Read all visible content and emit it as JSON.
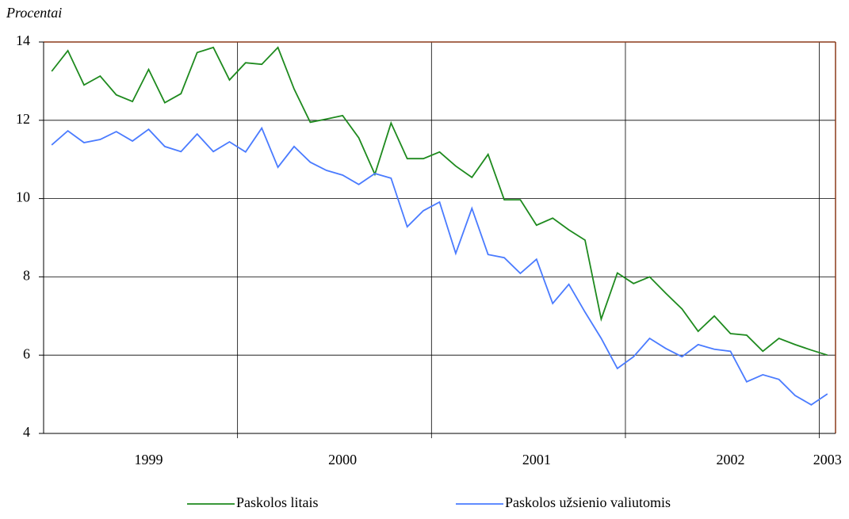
{
  "chart_data": {
    "type": "line",
    "y_axis_label": "Procentai",
    "categories": [
      null,
      null,
      null,
      null,
      null,
      null,
      "1999",
      null,
      null,
      null,
      null,
      null,
      null,
      null,
      null,
      null,
      null,
      null,
      "2000",
      null,
      null,
      null,
      null,
      null,
      null,
      null,
      null,
      null,
      null,
      null,
      "2001",
      null,
      null,
      null,
      null,
      null,
      null,
      null,
      null,
      null,
      null,
      null,
      "2002",
      null,
      null,
      null,
      null,
      null,
      "2003"
    ],
    "series": [
      {
        "name": "Paskolos litais",
        "color": "#1e8a1e",
        "values": [
          13.25,
          13.78,
          12.9,
          13.13,
          12.65,
          12.48,
          13.3,
          12.45,
          12.68,
          13.73,
          13.86,
          13.03,
          13.47,
          13.43,
          13.86,
          12.8,
          11.95,
          12.03,
          12.12,
          11.55,
          10.62,
          11.93,
          11.02,
          11.02,
          11.19,
          10.83,
          10.54,
          11.13,
          9.97,
          9.97,
          9.32,
          9.5,
          9.2,
          8.94,
          6.92,
          8.1,
          7.83,
          8.0,
          7.58,
          7.18,
          6.61,
          7.0,
          6.55,
          6.51,
          6.1,
          6.43,
          6.27,
          6.13,
          6.0
        ]
      },
      {
        "name": "Paskolos užsienio valiutomis",
        "color": "#4a7bff",
        "values": [
          11.37,
          11.73,
          11.43,
          11.51,
          11.71,
          11.47,
          11.77,
          11.33,
          11.2,
          11.65,
          11.2,
          11.45,
          11.19,
          11.8,
          10.8,
          11.33,
          10.93,
          10.72,
          10.6,
          10.36,
          10.64,
          10.52,
          9.28,
          9.69,
          9.91,
          8.6,
          9.75,
          8.57,
          8.49,
          8.09,
          8.45,
          7.32,
          7.81,
          7.1,
          6.43,
          5.66,
          5.96,
          6.43,
          6.17,
          5.96,
          6.27,
          6.15,
          6.1,
          5.32,
          5.5,
          5.38,
          4.97,
          4.73,
          5.01
        ]
      }
    ],
    "ylim": [
      4,
      14
    ],
    "yticks": [
      4,
      6,
      8,
      10,
      12,
      14
    ],
    "grid": true,
    "legend": "bottom"
  }
}
